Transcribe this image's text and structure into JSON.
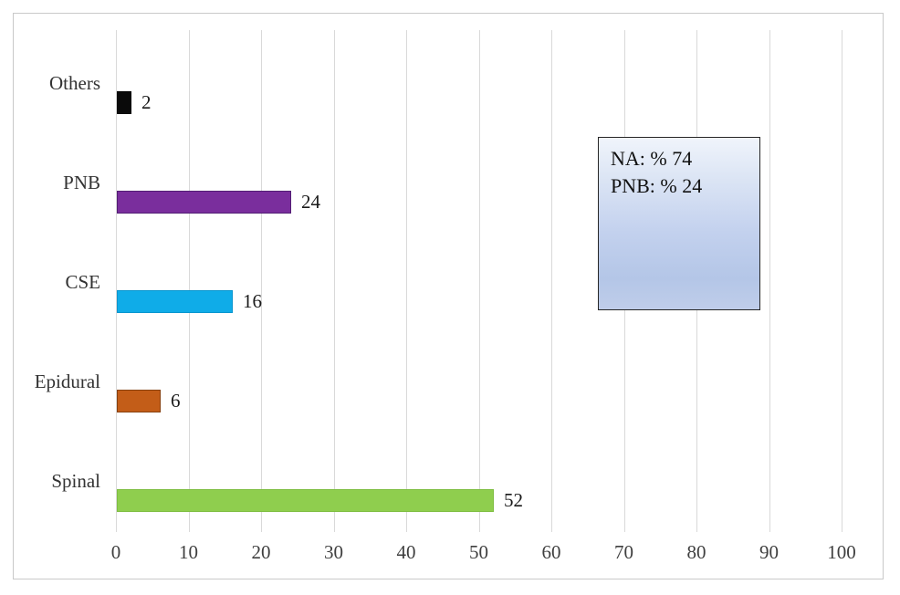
{
  "chart_data": {
    "type": "bar",
    "orientation": "horizontal",
    "title": "",
    "xlabel": "",
    "ylabel": "",
    "categories": [
      "Others",
      "PNB",
      "CSE",
      "Epidural",
      "Spinal"
    ],
    "values": [
      2,
      24,
      16,
      6,
      52
    ],
    "value_labels": [
      "2",
      "24",
      "16",
      "6",
      "52"
    ],
    "bar_fill_colors": [
      "#0a0a0a",
      "#7a2e9d",
      "#0face8",
      "#c35d18",
      "#8fce4e"
    ],
    "bar_border_colors": [
      "#000000",
      "#531e75",
      "#0795ce",
      "#87400f",
      "#7fbe42"
    ],
    "xlim": [
      0,
      100
    ],
    "x_ticks": [
      0,
      10,
      20,
      30,
      40,
      50,
      60,
      70,
      80,
      90,
      100
    ],
    "x_tick_labels": [
      "0",
      "10",
      "20",
      "30",
      "40",
      "50",
      "60",
      "70",
      "80",
      "90",
      "100"
    ],
    "grid": true,
    "gridline_color": "#d9d9d9",
    "legend_position": "inside-right",
    "annotation_box": {
      "lines": [
        "NA: % 74",
        "PNB: % 24"
      ],
      "border_color": "#262626",
      "gradient_top_color": "#f0f4fb",
      "gradient_bottom_color": "#b4c6e7"
    }
  }
}
